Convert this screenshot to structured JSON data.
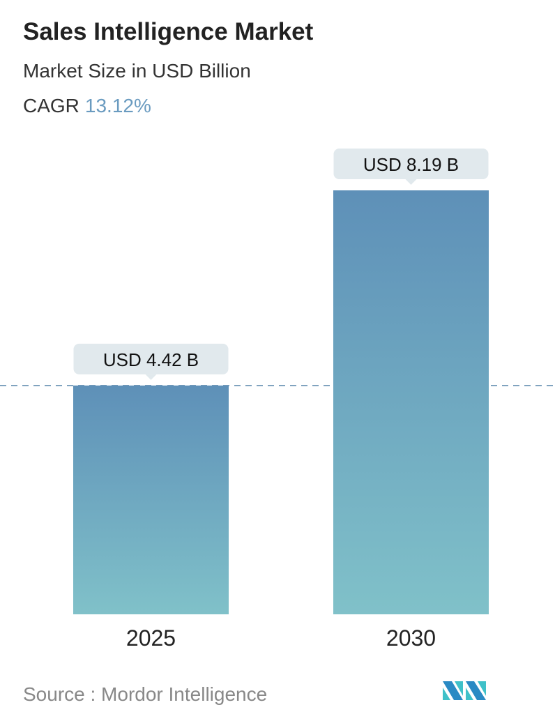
{
  "header": {
    "title": "Sales Intelligence Market",
    "subtitle": "Market Size in USD Billion",
    "cagr_label": "CAGR",
    "cagr_value": "13.12%"
  },
  "chart_data": {
    "type": "bar",
    "categories": [
      "2025",
      "2030"
    ],
    "values": [
      4.42,
      8.19
    ],
    "data_labels": [
      "USD 4.42 B",
      "USD 8.19 B"
    ],
    "ylim": [
      0,
      8.19
    ],
    "grid": false,
    "reference_line": {
      "value": 4.42,
      "style": "dashed"
    },
    "colors": {
      "bar_top": "#5e90b8",
      "bar_bottom": "#80c1c9",
      "label_bg": "#e1e9ed",
      "ref_line": "#5e8aae"
    }
  },
  "footer": {
    "source": "Source :  Mordor Intelligence",
    "logo_text": "Mordor Intelligence"
  }
}
